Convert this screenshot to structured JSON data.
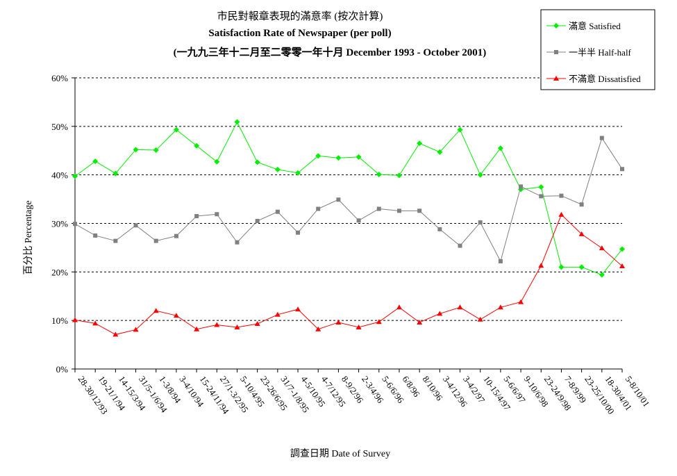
{
  "chart_data": {
    "type": "line",
    "title": "市民對報章表現的滿意率 (按次計算)",
    "subtitle": "Satisfaction Rate of Newspaper (per poll)",
    "subtitle2": "(一九九三年十二月至二零零一年十月 December 1993 - October 2001)",
    "xlabel": "調查日期 Date of Survey",
    "ylabel": "百分比 Percentage",
    "ylim": [
      0,
      60
    ],
    "yticks": [
      "0%",
      "10%",
      "20%",
      "30%",
      "40%",
      "50%",
      "60%"
    ],
    "grid": true,
    "legend_position": "top-right",
    "categories": [
      "28-30/12/93",
      "19-21/1/94",
      "14-15/3/94",
      "31/5-1/6/94",
      "1-3/8/94",
      "3-4/10/94",
      "15-24/11/94",
      "27/1-3/2/95",
      "5-10/4/95",
      "23-26/6/95",
      "31/7-1/8/95",
      "4-5/10/95",
      "4-7/12/95",
      "8-9/2/96",
      "2-3/4/96",
      "5-6/6/96",
      "6/8/96",
      "8/10/96",
      "3-4/12/96",
      "3-4/2/97",
      "10-15/4/97",
      "5-6/6/97",
      "9-10/6/98",
      "23-24/9/98",
      "7-8/9/99",
      "23-25/10/00",
      "18-30/4/01",
      "5-8/10/01"
    ],
    "series": [
      {
        "name": "滿意 Satisfied",
        "color": "#00ee00",
        "marker": "diamond",
        "values": [
          39.7,
          42.8,
          40.3,
          45.2,
          45.1,
          49.3,
          46.0,
          42.7,
          50.9,
          42.6,
          41.1,
          40.4,
          43.9,
          43.5,
          43.7,
          40.1,
          39.9,
          46.5,
          44.7,
          49.3,
          40.0,
          45.5,
          37.0,
          37.5,
          21.0,
          21.0,
          19.4,
          24.7
        ]
      },
      {
        "name": "一半半 Half-half",
        "color": "#808080",
        "marker": "square",
        "values": [
          29.9,
          27.5,
          26.4,
          29.6,
          26.4,
          27.4,
          31.5,
          31.9,
          26.1,
          30.5,
          32.4,
          28.1,
          33.0,
          34.9,
          30.6,
          33.0,
          32.6,
          32.6,
          28.8,
          25.4,
          30.2,
          22.2,
          37.6,
          35.6,
          35.7,
          33.9,
          47.6,
          41.2
        ]
      },
      {
        "name": "不滿意 Dissatisfied",
        "color": "#ff0000",
        "marker": "triangle",
        "values": [
          10.1,
          9.4,
          7.1,
          8.1,
          12.0,
          11.0,
          8.2,
          9.1,
          8.6,
          9.3,
          11.2,
          12.3,
          8.2,
          9.6,
          8.6,
          9.7,
          12.7,
          9.6,
          11.4,
          12.7,
          10.2,
          12.7,
          13.8,
          21.3,
          31.8,
          27.8,
          24.9,
          21.2
        ]
      }
    ]
  }
}
